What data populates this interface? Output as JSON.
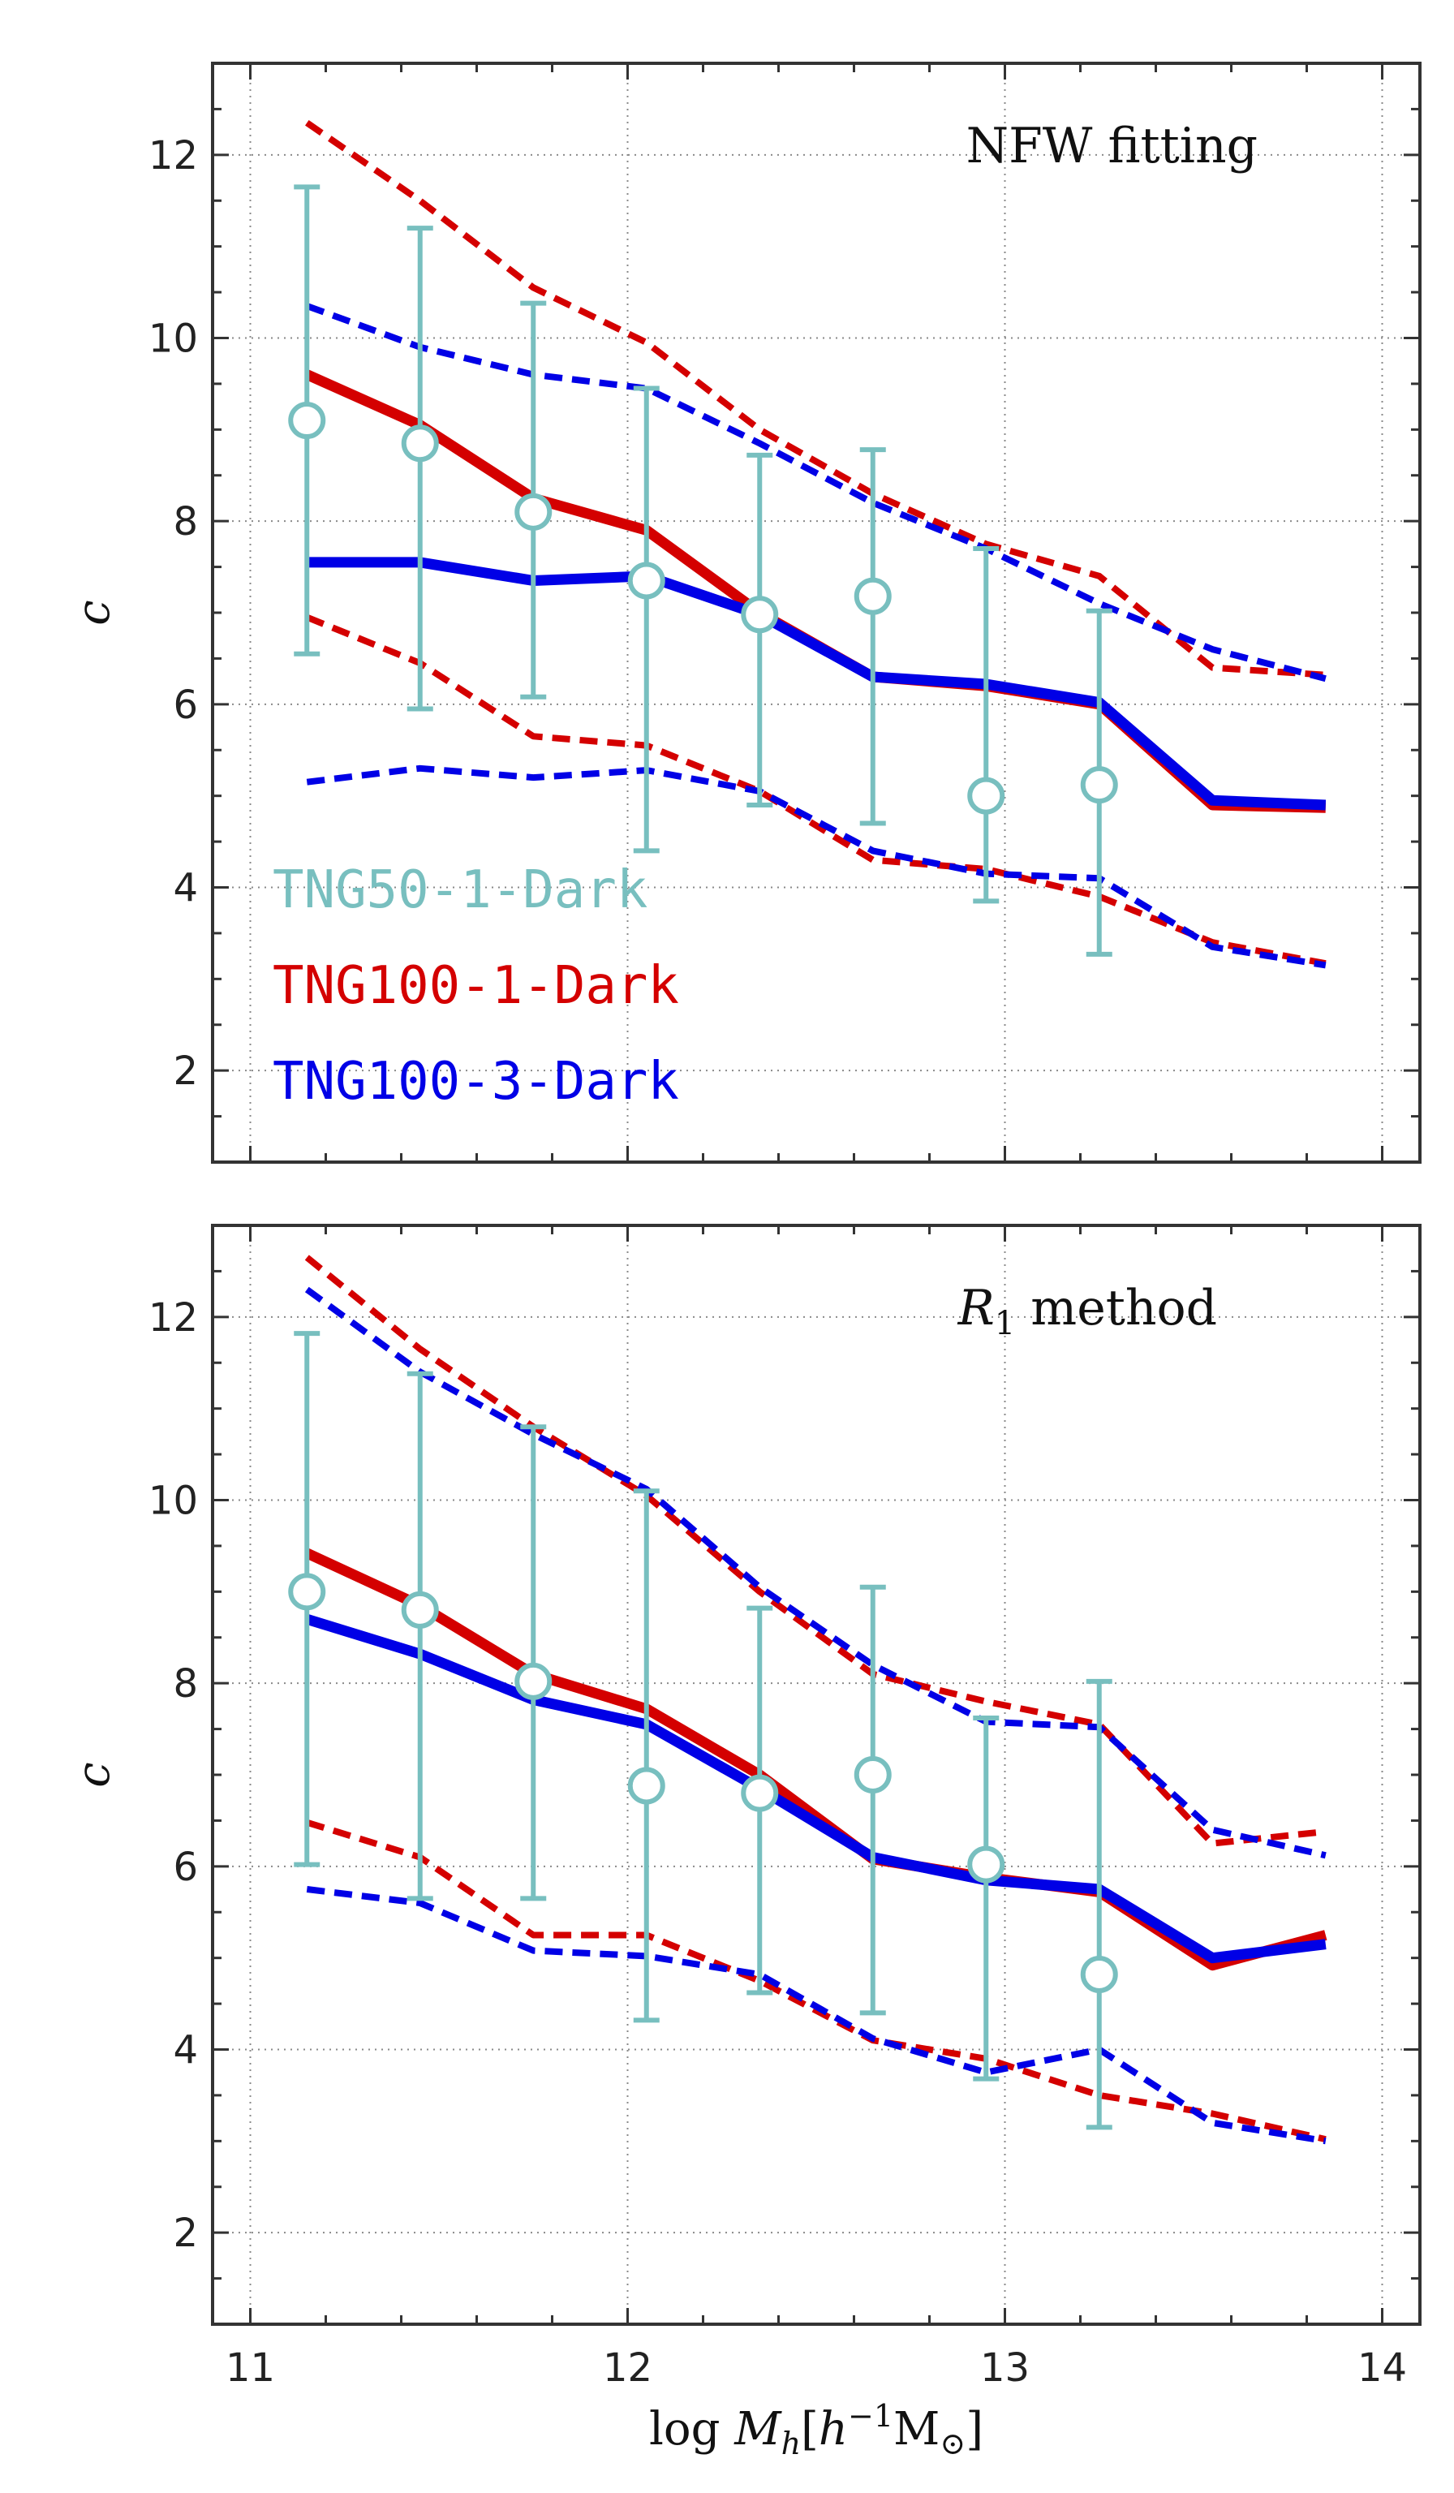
{
  "chart_data": [
    {
      "type": "line",
      "panel": "top",
      "annotation_parts": [
        "NFW fitting"
      ],
      "ylabel": "c",
      "xlim": [
        10.9,
        14.1
      ],
      "ylim": [
        1,
        13
      ],
      "x_ticks": [
        "11",
        "12",
        "13",
        "14"
      ],
      "y_ticks": [
        "2",
        "4",
        "6",
        "8",
        "10",
        "12"
      ],
      "grid": true,
      "legend_placement": "bottom-left",
      "legend": [
        "TNG50-1-Dark",
        "TNG100-1-Dark",
        "TNG100-3-Dark"
      ],
      "series": [
        {
          "legend_index": 1,
          "style": "solid",
          "color": "#d40000",
          "x": [
            11.15,
            11.45,
            11.75,
            12.05,
            12.35,
            12.65,
            12.95,
            13.25,
            13.55,
            13.85
          ],
          "y": [
            9.6,
            9.05,
            8.25,
            7.9,
            7.0,
            6.3,
            6.2,
            6.0,
            4.9,
            4.87
          ]
        },
        {
          "legend_index": 2,
          "style": "solid",
          "color": "#0000e6",
          "x": [
            11.15,
            11.45,
            11.75,
            12.05,
            12.35,
            12.65,
            12.95,
            13.25,
            13.55,
            13.85
          ],
          "y": [
            7.55,
            7.55,
            7.35,
            7.4,
            6.98,
            6.3,
            6.22,
            6.02,
            4.95,
            4.9
          ]
        },
        {
          "legend_index": 1,
          "style": "dashed",
          "color": "#d40000",
          "x": [
            11.15,
            11.45,
            11.75,
            12.05,
            12.35,
            12.65,
            12.95,
            13.25,
            13.55,
            13.85
          ],
          "y": [
            12.35,
            11.5,
            10.55,
            9.95,
            9.0,
            8.3,
            7.75,
            7.4,
            6.4,
            6.32
          ]
        },
        {
          "legend_index": 2,
          "style": "dashed",
          "color": "#0000e6",
          "x": [
            11.15,
            11.45,
            11.75,
            12.05,
            12.35,
            12.65,
            12.95,
            13.25,
            13.55,
            13.85
          ],
          "y": [
            10.35,
            9.9,
            9.6,
            9.45,
            8.85,
            8.2,
            7.7,
            7.1,
            6.6,
            6.28
          ]
        },
        {
          "legend_index": 1,
          "style": "dashed",
          "color": "#d40000",
          "x": [
            11.15,
            11.45,
            11.75,
            12.05,
            12.35,
            12.65,
            12.95,
            13.25,
            13.55,
            13.85
          ],
          "y": [
            6.95,
            6.45,
            5.65,
            5.55,
            5.05,
            4.3,
            4.2,
            3.9,
            3.4,
            3.17
          ]
        },
        {
          "legend_index": 2,
          "style": "dashed",
          "color": "#0000e6",
          "x": [
            11.15,
            11.45,
            11.75,
            12.05,
            12.35,
            12.65,
            12.95,
            13.25,
            13.55,
            13.85
          ],
          "y": [
            5.15,
            5.3,
            5.2,
            5.28,
            5.05,
            4.4,
            4.15,
            4.1,
            3.35,
            3.15
          ]
        }
      ],
      "errorbar_series": {
        "legend_index": 0,
        "color": "#78bfbf",
        "x": [
          11.15,
          11.45,
          11.75,
          12.05,
          12.35,
          12.65,
          12.95,
          13.25
        ],
        "y": [
          9.1,
          8.85,
          8.1,
          7.35,
          6.98,
          7.18,
          5.0,
          5.12
        ],
        "y_low": [
          6.55,
          5.95,
          6.08,
          4.4,
          4.9,
          4.7,
          3.85,
          3.27
        ],
        "y_high": [
          11.65,
          11.2,
          10.38,
          9.45,
          8.72,
          8.78,
          7.7,
          7.02
        ]
      }
    },
    {
      "type": "line",
      "panel": "bottom",
      "annotation_parts": [
        "R",
        "1",
        " method"
      ],
      "xlabel_parts": [
        "log ",
        "M",
        "h",
        "[",
        "h",
        "−1",
        "M",
        "⊙",
        "]"
      ],
      "ylabel": "c",
      "xlim": [
        10.9,
        14.1
      ],
      "ylim": [
        1,
        13
      ],
      "x_ticks": [
        "11",
        "12",
        "13",
        "14"
      ],
      "y_ticks": [
        "2",
        "4",
        "6",
        "8",
        "10",
        "12"
      ],
      "grid": true,
      "series": [
        {
          "legend_index": 1,
          "style": "solid",
          "color": "#d40000",
          "x": [
            11.15,
            11.45,
            11.75,
            12.05,
            12.35,
            12.65,
            12.95,
            13.25,
            13.55,
            13.85
          ],
          "y": [
            9.42,
            8.85,
            8.1,
            7.72,
            7.0,
            6.08,
            5.88,
            5.72,
            4.92,
            5.25
          ]
        },
        {
          "legend_index": 2,
          "style": "solid",
          "color": "#0000e6",
          "x": [
            11.15,
            11.45,
            11.75,
            12.05,
            12.35,
            12.65,
            12.95,
            13.25,
            13.55,
            13.85
          ],
          "y": [
            8.7,
            8.32,
            7.82,
            7.55,
            6.85,
            6.1,
            5.85,
            5.75,
            5.0,
            5.15
          ]
        },
        {
          "legend_index": 1,
          "style": "dashed",
          "color": "#d40000",
          "x": [
            11.15,
            11.45,
            11.75,
            12.05,
            12.35,
            12.65,
            12.95,
            13.25,
            13.55,
            13.85
          ],
          "y": [
            12.65,
            11.65,
            10.8,
            10.05,
            9.0,
            8.1,
            7.8,
            7.55,
            6.25,
            6.38
          ]
        },
        {
          "legend_index": 2,
          "style": "dashed",
          "color": "#0000e6",
          "x": [
            11.15,
            11.45,
            11.75,
            12.05,
            12.35,
            12.65,
            12.95,
            13.25,
            13.55,
            13.85
          ],
          "y": [
            12.3,
            11.4,
            10.72,
            10.12,
            9.05,
            8.2,
            7.58,
            7.52,
            6.4,
            6.12
          ]
        },
        {
          "legend_index": 1,
          "style": "dashed",
          "color": "#d40000",
          "x": [
            11.15,
            11.45,
            11.75,
            12.05,
            12.35,
            12.65,
            12.95,
            13.25,
            13.55,
            13.85
          ],
          "y": [
            6.48,
            6.1,
            5.25,
            5.25,
            4.75,
            4.1,
            3.9,
            3.5,
            3.3,
            3.02
          ]
        },
        {
          "legend_index": 2,
          "style": "dashed",
          "color": "#0000e6",
          "x": [
            11.15,
            11.45,
            11.75,
            12.05,
            12.35,
            12.65,
            12.95,
            13.25,
            13.55,
            13.85
          ],
          "y": [
            5.75,
            5.6,
            5.08,
            5.02,
            4.82,
            4.12,
            3.75,
            4.0,
            3.2,
            3.0
          ]
        }
      ],
      "errorbar_series": {
        "legend_index": 0,
        "color": "#78bfbf",
        "x": [
          11.15,
          11.45,
          11.75,
          12.05,
          12.35,
          12.65,
          12.95,
          13.25
        ],
        "y": [
          9.0,
          8.8,
          8.02,
          6.88,
          6.8,
          7.0,
          6.02,
          4.82
        ],
        "y_low": [
          6.02,
          5.65,
          5.65,
          4.32,
          4.62,
          4.4,
          3.68,
          3.15
        ],
        "y_high": [
          11.82,
          11.38,
          10.8,
          10.1,
          8.82,
          9.05,
          7.62,
          8.02
        ]
      }
    }
  ],
  "legend_colors": [
    "#78bfbf",
    "#d40000",
    "#0000e6"
  ]
}
